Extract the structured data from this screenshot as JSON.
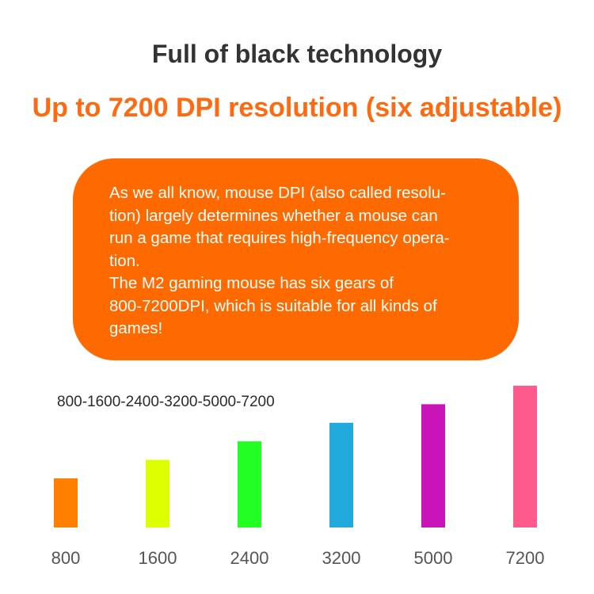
{
  "heading": "Full of black technology",
  "subheading": "Up to 7200 DPI resolution (six adjustable)",
  "callout": {
    "paragraph_1_lines": [
      "As we all know, mouse DPI (also called resolu-",
      "tion) largely determines whether a mouse can",
      "run a game that requires high-frequency opera-",
      "tion."
    ],
    "paragraph_2_lines": [
      "The M2 gaming mouse has six gears of",
      "800-7200DPI, which is suitable for all kinds of",
      "games!"
    ],
    "background_color": "#ff6a00"
  },
  "dpi_sequence": "800-1600-2400-3200-5000-7200",
  "colors": {
    "heading": "#333333",
    "subheading": "#ff6a10",
    "tick_label": "#555555"
  },
  "chart_data": {
    "type": "bar",
    "categories": [
      "800",
      "1600",
      "2400",
      "3200",
      "5000",
      "7200"
    ],
    "values": [
      1,
      2,
      3,
      4,
      5,
      6
    ],
    "colors": [
      "#ff7f00",
      "#ddff00",
      "#22ff22",
      "#22aadd",
      "#c814b8",
      "#ff5a8c"
    ],
    "ylim": [
      0,
      6
    ],
    "grid": false,
    "legend": "none",
    "title": "",
    "xlabel": "",
    "ylabel": ""
  }
}
